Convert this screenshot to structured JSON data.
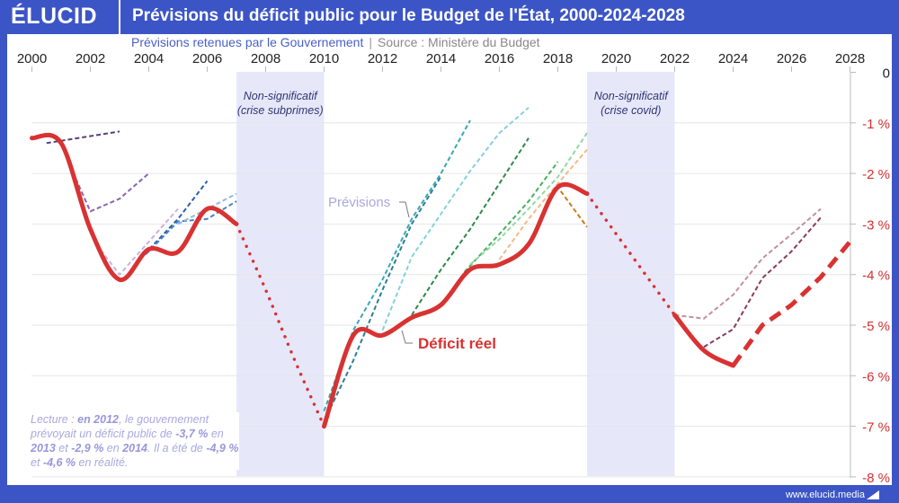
{
  "header": {
    "logo": "ÉLUCID",
    "title": "Prévisions du déficit public pour le Budget de l'État, 2000-2024-2028"
  },
  "subtitle": {
    "left": "Prévisions retenues par le Gouvernement",
    "separator": "|",
    "source": "Source : Ministère du Budget"
  },
  "footer": {
    "url": "www.elucid.media"
  },
  "lecture": {
    "parts": [
      "Lecture : ",
      "en 2012",
      ", le gouvernement prévoyait un déficit public de ",
      "-3,7 %",
      " en ",
      "2013",
      " et ",
      "-2,9 %",
      " en ",
      "2014",
      ". Il a été de ",
      "-4,9 %",
      " et ",
      "-4,6 %",
      " en réalité."
    ]
  },
  "chart_data": {
    "type": "line",
    "xlim": [
      2000,
      2028
    ],
    "ylim": [
      -8,
      0
    ],
    "x_ticks": [
      "2000",
      "2002",
      "2004",
      "2006",
      "2008",
      "2010",
      "2012",
      "2014",
      "2016",
      "2018",
      "2020",
      "2022",
      "2024",
      "2026",
      "2028"
    ],
    "y_ticks": [
      "0",
      "-1 %",
      "-2 %",
      "-3 %",
      "-4 %",
      "-5 %",
      "-6 %",
      "-7 %",
      "-8 %"
    ],
    "x_axis_position": "top",
    "y_axis_position": "right",
    "grid": "horizontal",
    "shaded_periods": [
      {
        "from": 2007,
        "to": 2010,
        "label": [
          "Non-significatif",
          "(crise subprimes)"
        ]
      },
      {
        "from": 2019,
        "to": 2022,
        "label": [
          "Non-significatif",
          "(crise covid)"
        ]
      }
    ],
    "annotations": {
      "forecasts": "Prévisions",
      "actual": "Déficit réel"
    },
    "colors": {
      "actual": "#d93232",
      "axis_labels": "#d42f2f",
      "shade": "#e6e8fa",
      "forecast_label": "#a9a8e0"
    },
    "actual": {
      "solid_1": [
        [
          2000,
          -1.3
        ],
        [
          2001,
          -1.4
        ],
        [
          2002,
          -3.1
        ],
        [
          2003,
          -4.1
        ],
        [
          2004,
          -3.5
        ],
        [
          2005,
          -3.55
        ],
        [
          2006,
          -2.7
        ],
        [
          2007,
          -3.0
        ]
      ],
      "dotted_1": [
        [
          2007,
          -3.0
        ],
        [
          2008,
          -4.3
        ],
        [
          2009,
          -5.7
        ],
        [
          2010,
          -7.0
        ]
      ],
      "solid_2": [
        [
          2010,
          -7.0
        ],
        [
          2011,
          -5.2
        ],
        [
          2012,
          -5.2
        ],
        [
          2013,
          -4.85
        ],
        [
          2014,
          -4.6
        ],
        [
          2015,
          -3.9
        ],
        [
          2016,
          -3.8
        ],
        [
          2017,
          -3.4
        ],
        [
          2018,
          -2.27
        ],
        [
          2019,
          -2.4
        ]
      ],
      "dotted_2": [
        [
          2019,
          -2.4
        ],
        [
          2020,
          -3.2
        ],
        [
          2021,
          -4.0
        ],
        [
          2022,
          -4.8
        ]
      ],
      "solid_3": [
        [
          2022,
          -4.8
        ],
        [
          2023,
          -5.5
        ],
        [
          2024,
          -5.8
        ]
      ],
      "dashed_projection": [
        [
          2024,
          -5.8
        ],
        [
          2025,
          -5.0
        ],
        [
          2026,
          -4.6
        ],
        [
          2027,
          -4.05
        ],
        [
          2028,
          -3.35
        ]
      ]
    },
    "forecasts": [
      {
        "color": "#5a3f7c",
        "points": [
          [
            2000.5,
            -1.4
          ],
          [
            2003,
            -1.17
          ]
        ]
      },
      {
        "color": "#8a63b4",
        "points": [
          [
            2001.5,
            -2.1
          ],
          [
            2002,
            -2.75
          ],
          [
            2003,
            -2.5
          ],
          [
            2004,
            -2.0
          ]
        ]
      },
      {
        "color": "#c9b0e0",
        "points": [
          [
            2002.2,
            -3.4
          ],
          [
            2003,
            -4.0
          ],
          [
            2004,
            -3.35
          ],
          [
            2005,
            -2.7
          ]
        ]
      },
      {
        "color": "#2f5fa8",
        "points": [
          [
            2003.85,
            -3.6
          ],
          [
            2005,
            -2.9
          ],
          [
            2006,
            -2.15
          ]
        ]
      },
      {
        "color": "#4a82c8",
        "points": [
          [
            2003.9,
            -3.6
          ],
          [
            2005,
            -2.95
          ],
          [
            2006,
            -2.9
          ],
          [
            2007,
            -2.55
          ]
        ]
      },
      {
        "color": "#8fb8e4",
        "points": [
          [
            2005,
            -3.0
          ],
          [
            2006,
            -2.7
          ],
          [
            2007,
            -2.4
          ]
        ]
      },
      {
        "color": "#2a7f92",
        "points": [
          [
            2010,
            -6.9
          ],
          [
            2011,
            -5.7
          ],
          [
            2012,
            -4.3
          ],
          [
            2013,
            -3.0
          ],
          [
            2014,
            -2.06
          ]
        ]
      },
      {
        "color": "#3aa6b6",
        "points": [
          [
            2010,
            -6.7
          ],
          [
            2011,
            -5.1
          ],
          [
            2012,
            -4.1
          ],
          [
            2013,
            -2.9
          ],
          [
            2014,
            -2.0
          ],
          [
            2015,
            -0.95
          ]
        ]
      },
      {
        "color": "#86d0da",
        "points": [
          [
            2012,
            -5.1
          ],
          [
            2013,
            -3.65
          ],
          [
            2014,
            -2.8
          ],
          [
            2015,
            -1.95
          ],
          [
            2016,
            -1.2
          ],
          [
            2017,
            -0.7
          ]
        ]
      },
      {
        "color": "#2a8a48",
        "points": [
          [
            2013,
            -4.8
          ],
          [
            2014,
            -3.9
          ],
          [
            2015,
            -3.1
          ],
          [
            2016,
            -2.2
          ],
          [
            2017,
            -1.3
          ]
        ]
      },
      {
        "color": "#48ae5e",
        "points": [
          [
            2014.8,
            -3.95
          ],
          [
            2016,
            -3.2
          ],
          [
            2017,
            -2.55
          ],
          [
            2018,
            -1.77
          ]
        ]
      },
      {
        "color": "#92d8a4",
        "points": [
          [
            2015,
            -3.8
          ],
          [
            2016,
            -3.3
          ],
          [
            2017,
            -2.7
          ],
          [
            2018,
            -2.07
          ],
          [
            2019,
            -1.2
          ]
        ]
      },
      {
        "color": "#f5b886",
        "points": [
          [
            2016,
            -3.7
          ],
          [
            2017,
            -2.9
          ],
          [
            2018,
            -2.2
          ],
          [
            2019,
            -1.53
          ]
        ]
      },
      {
        "color": "#c87a1e",
        "points": [
          [
            2018.1,
            -2.35
          ],
          [
            2019,
            -3.06
          ]
        ]
      },
      {
        "color": "#c48ea4",
        "points": [
          [
            2022,
            -4.8
          ],
          [
            2023,
            -4.87
          ],
          [
            2024,
            -4.4
          ],
          [
            2025,
            -3.68
          ],
          [
            2026,
            -3.2
          ],
          [
            2027,
            -2.7
          ]
        ]
      },
      {
        "color": "#8a3a5c",
        "points": [
          [
            2023,
            -5.43
          ],
          [
            2024,
            -5.08
          ],
          [
            2025,
            -4.07
          ],
          [
            2026,
            -3.54
          ],
          [
            2027,
            -2.87
          ]
        ]
      }
    ]
  }
}
